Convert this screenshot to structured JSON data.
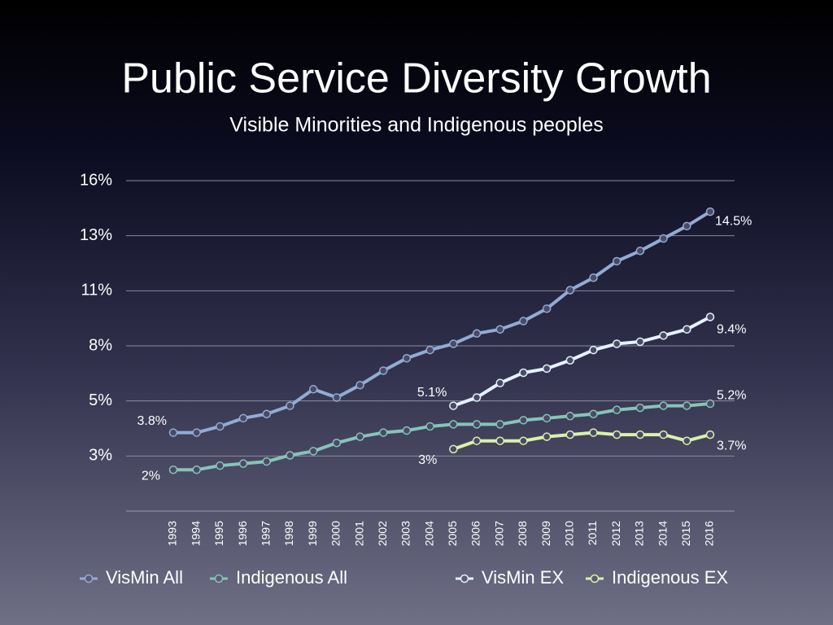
{
  "chart_data": {
    "type": "line",
    "title": "Public Service Diversity Growth",
    "subtitle": "Visible Minorities and Indigenous peoples",
    "categories": [
      "1993",
      "1994",
      "1995",
      "1996",
      "1997",
      "1998",
      "1999",
      "2000",
      "2001",
      "2002",
      "2003",
      "2004",
      "2005",
      "2006",
      "2007",
      "2008",
      "2009",
      "2010",
      "2011",
      "2012",
      "2013",
      "2014",
      "2015",
      "2016"
    ],
    "ylim": [
      0,
      16
    ],
    "yticks": [
      {
        "value": 2.667,
        "label": "3%"
      },
      {
        "value": 5.333,
        "label": "5%"
      },
      {
        "value": 8,
        "label": "8%"
      },
      {
        "value": 10.667,
        "label": "11%"
      },
      {
        "value": 13.333,
        "label": "13%"
      },
      {
        "value": 16,
        "label": "16%"
      }
    ],
    "grid": true,
    "legend": "bottom",
    "series": [
      {
        "name": "VisMin All",
        "color": "#93abd4",
        "values": [
          3.8,
          3.8,
          4.1,
          4.5,
          4.7,
          5.1,
          5.9,
          5.5,
          6.1,
          6.8,
          7.4,
          7.8,
          8.1,
          8.6,
          8.8,
          9.2,
          9.8,
          10.7,
          11.3,
          12.1,
          12.6,
          13.2,
          13.8,
          14.5
        ],
        "value_labels": [
          "3.8%",
          null,
          null,
          null,
          null,
          null,
          null,
          null,
          null,
          null,
          null,
          null,
          null,
          null,
          null,
          null,
          null,
          null,
          null,
          null,
          null,
          null,
          null,
          "14.5%"
        ]
      },
      {
        "name": "Indigenous All",
        "color": "#86c4b8",
        "values": [
          2.0,
          2.0,
          2.2,
          2.3,
          2.4,
          2.7,
          2.9,
          3.3,
          3.6,
          3.8,
          3.9,
          4.1,
          4.2,
          4.2,
          4.2,
          4.4,
          4.5,
          4.6,
          4.7,
          4.9,
          5.0,
          5.1,
          5.1,
          5.2
        ],
        "value_labels": [
          "2%",
          null,
          null,
          null,
          null,
          null,
          null,
          null,
          null,
          null,
          null,
          null,
          null,
          null,
          null,
          null,
          null,
          null,
          null,
          null,
          null,
          null,
          null,
          "5.2%"
        ]
      },
      {
        "name": "VisMin EX",
        "color": "#e4f2ff",
        "values": [
          null,
          null,
          null,
          null,
          null,
          null,
          null,
          null,
          null,
          null,
          null,
          null,
          5.1,
          5.5,
          6.2,
          6.7,
          6.9,
          7.3,
          7.8,
          8.1,
          8.2,
          8.5,
          8.8,
          9.4
        ],
        "value_labels": [
          null,
          null,
          null,
          null,
          null,
          null,
          null,
          null,
          null,
          null,
          null,
          null,
          "5.1%",
          null,
          null,
          null,
          null,
          null,
          null,
          null,
          null,
          null,
          null,
          "9.4%"
        ]
      },
      {
        "name": "Indigenous EX",
        "color": "#d9f2aa",
        "values": [
          null,
          null,
          null,
          null,
          null,
          null,
          null,
          null,
          null,
          null,
          null,
          null,
          3.0,
          3.4,
          3.4,
          3.4,
          3.6,
          3.7,
          3.8,
          3.7,
          3.7,
          3.7,
          3.4,
          3.7
        ],
        "value_labels": [
          null,
          null,
          null,
          null,
          null,
          null,
          null,
          null,
          null,
          null,
          null,
          null,
          "3%",
          null,
          null,
          null,
          null,
          null,
          null,
          null,
          null,
          null,
          null,
          "3.7%"
        ]
      }
    ]
  }
}
